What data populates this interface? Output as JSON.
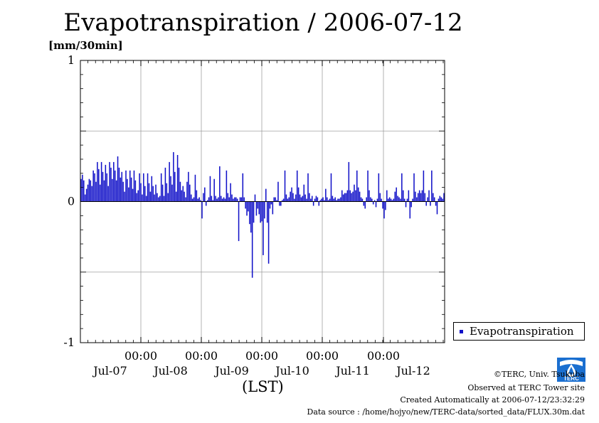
{
  "chart_data": {
    "type": "bar",
    "title": "Evapotranspiration / 2006-07-12",
    "ylabel": "[mm/30min]",
    "xlabel": "(LST)",
    "ylim": [
      -1,
      1
    ],
    "y_ticks": [
      "1",
      "0",
      "-1"
    ],
    "x_tick_time_labels": [
      "00:00",
      "00:00",
      "00:00",
      "00:00",
      "00:00"
    ],
    "x_date_labels": [
      "Jul-07",
      "Jul-08",
      "Jul-09",
      "Jul-10",
      "Jul-11",
      "Jul-12"
    ],
    "grid": true,
    "legend_position": "right",
    "series": [
      {
        "name": "Evapotranspiration",
        "color": "#1010c8",
        "interval": "30 min",
        "values": [
          0.16,
          0.19,
          0.15,
          0.05,
          0.09,
          0.12,
          0.16,
          0.15,
          0.11,
          0.22,
          0.2,
          0.14,
          0.28,
          0.23,
          0.12,
          0.28,
          0.21,
          0.15,
          0.26,
          0.2,
          0.11,
          0.28,
          0.24,
          0.16,
          0.28,
          0.22,
          0.15,
          0.32,
          0.24,
          0.17,
          0.21,
          0.14,
          0.07,
          0.22,
          0.16,
          0.1,
          0.22,
          0.17,
          0.09,
          0.22,
          0.15,
          0.06,
          0.08,
          0.2,
          0.13,
          0.05,
          0.2,
          0.11,
          0.04,
          0.2,
          0.13,
          0.07,
          0.18,
          0.11,
          0.05,
          0.12,
          0.06,
          0.03,
          0.04,
          0.2,
          0.12,
          0.04,
          0.24,
          0.13,
          0.06,
          0.28,
          0.18,
          0.12,
          0.35,
          0.21,
          0.07,
          0.33,
          0.24,
          0.14,
          0.08,
          0.11,
          0.07,
          0.03,
          0.14,
          0.21,
          0.12,
          0.05,
          0.02,
          0.03,
          0.19,
          0.08,
          0.02,
          0.03,
          0.01,
          -0.12,
          0.06,
          0.1,
          -0.03,
          0.01,
          0.03,
          0.18,
          0.04,
          0.01,
          0.16,
          0.04,
          0.02,
          0.03,
          0.25,
          0.04,
          0.02,
          0.03,
          0.02,
          0.22,
          0.06,
          0.03,
          0.13,
          0.05,
          0.02,
          0.03,
          0.03,
          0.02,
          -0.28,
          0.03,
          0.03,
          0.2,
          0.03,
          -0.05,
          -0.1,
          -0.07,
          -0.16,
          -0.22,
          -0.54,
          -0.15,
          0.05,
          -0.1,
          -0.05,
          -0.09,
          -0.15,
          -0.14,
          -0.38,
          -0.12,
          0.09,
          -0.15,
          -0.44,
          -0.05,
          -0.02,
          -0.09,
          0.03,
          0.03,
          0.01,
          0.14,
          -0.03,
          -0.03,
          0.01,
          0.02,
          0.22,
          0.05,
          0.02,
          0.03,
          0.07,
          0.1,
          0.06,
          0.02,
          0.05,
          0.22,
          0.1,
          0.05,
          0.03,
          0.04,
          0.12,
          0.05,
          0.02,
          0.2,
          0.06,
          0.02,
          0.04,
          -0.03,
          0.02,
          0.04,
          0.03,
          -0.03,
          0.01,
          0.02,
          0.03,
          0.01,
          0.09,
          0.03,
          0.01,
          0.02,
          0.2,
          0.04,
          0.02,
          0.03,
          0.01,
          0.02,
          0.02,
          0.03,
          0.08,
          0.05,
          0.06,
          0.06,
          0.08,
          0.28,
          0.08,
          0.06,
          0.07,
          0.12,
          0.08,
          0.22,
          0.1,
          0.07,
          0.03,
          0.02,
          -0.03,
          -0.05,
          0.03,
          0.22,
          0.08,
          0.03,
          0.02,
          -0.02,
          0.01,
          -0.04,
          0.02,
          0.2,
          0.06,
          0.02,
          -0.05,
          -0.12,
          -0.06,
          0.08,
          0.02,
          0.03,
          0.02,
          0.01,
          0.02,
          0.07,
          0.1,
          0.04,
          0.03,
          0.02,
          0.2,
          0.08,
          0.02,
          -0.04,
          0.02,
          0.08,
          -0.12,
          -0.04,
          0.02,
          0.2,
          0.07,
          0.03,
          0.06,
          0.08,
          0.06,
          0.08,
          0.22,
          0.06,
          -0.03,
          0.03,
          0.08,
          -0.03,
          0.22,
          0.06,
          0.03,
          -0.03,
          -0.09,
          0.02,
          0.04,
          0.03,
          0.02,
          0.06
        ]
      }
    ]
  },
  "legend": {
    "label": "Evapotranspiration"
  },
  "footer": {
    "copyright": "©TERC, Univ. Tsukuba",
    "observed": "Observed at TERC Tower site",
    "created": "Created Automatically at 2006-07-12/23:32:29",
    "source": "Data source : /home/hojyo/new/TERC-data/sorted_data/FLUX.30m.dat",
    "logo_text": "TERC"
  }
}
